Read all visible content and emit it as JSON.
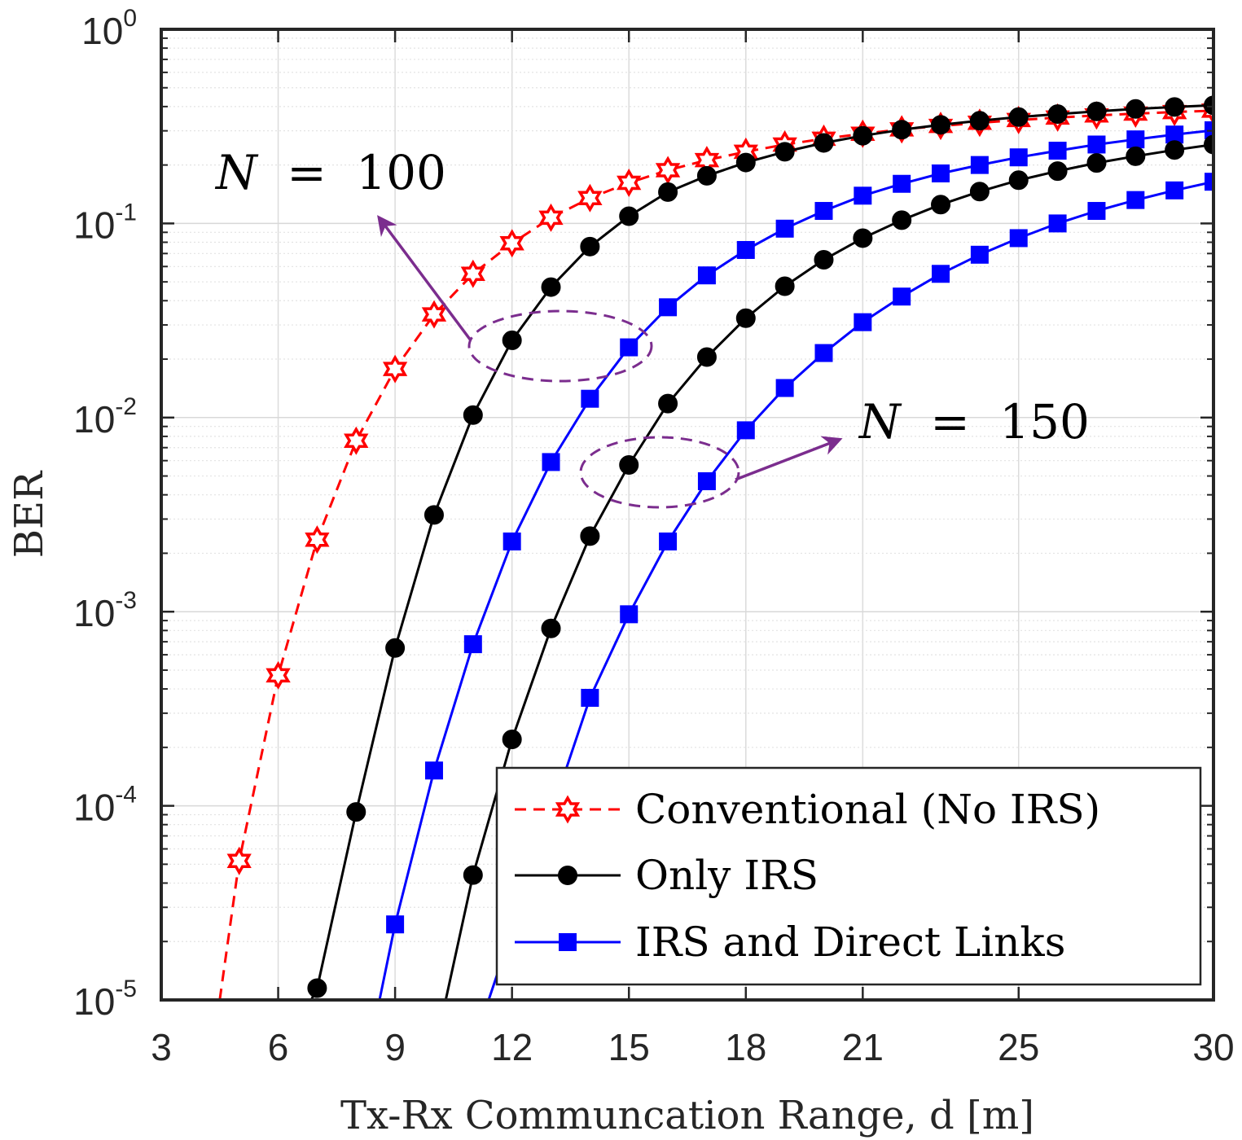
{
  "chart_data": {
    "type": "line",
    "title": "",
    "xlabel": "Tx-Rx Communcation Range, d [m]",
    "ylabel": "BER",
    "x_scale": "linear",
    "y_scale": "log",
    "xlim": [
      3,
      30
    ],
    "ylim": [
      1e-05,
      1
    ],
    "x_ticks": [
      3,
      6,
      9,
      12,
      15,
      18,
      21,
      25,
      30
    ],
    "y_tick_exponents": [
      0,
      -1,
      -2,
      -3,
      -4,
      -5
    ],
    "y_tick_base": "10",
    "grid": true,
    "colors": {
      "conventional": "#ff0000",
      "only_irs": "#000000",
      "irs_direct": "#0000ff",
      "annotation": "#7b2d8e",
      "axis": "#262626"
    },
    "legend": {
      "location": "bottom-right",
      "entries": [
        "Conventional (No IRS)",
        "Only IRS",
        "IRS and Direct Links"
      ]
    },
    "annotations": [
      {
        "variable": "N",
        "operator": "=",
        "value": "100"
      },
      {
        "variable": "N",
        "operator": "=",
        "value": "150"
      }
    ],
    "series": [
      {
        "name": "Conventional (No IRS)",
        "style": "dashed",
        "marker": "hexagram",
        "color": "#ff0000",
        "x": [
          4.5,
          5,
          6,
          7,
          8,
          9,
          10,
          11,
          12,
          13,
          14,
          15,
          16,
          17,
          18,
          19,
          20,
          21,
          22,
          23,
          24,
          25,
          26,
          27,
          28,
          29,
          30
        ],
        "y": [
          1e-05,
          5.2e-05,
          0.00047,
          0.00235,
          0.0076,
          0.0178,
          0.034,
          0.055,
          0.079,
          0.107,
          0.135,
          0.162,
          0.188,
          0.212,
          0.234,
          0.255,
          0.273,
          0.29,
          0.305,
          0.318,
          0.33,
          0.341,
          0.351,
          0.36,
          0.368,
          0.375,
          0.381
        ],
        "marker_from": 1
      },
      {
        "name": "Only IRS (N = 100)",
        "style": "solid",
        "marker": "circle",
        "color": "#000000",
        "x": [
          7,
          8,
          9,
          10,
          11,
          12,
          13,
          14,
          15,
          16,
          17,
          18,
          19,
          20,
          21,
          22,
          23,
          24,
          25,
          26,
          27,
          28,
          29,
          30
        ],
        "y": [
          1.15e-05,
          9.3e-05,
          0.00065,
          0.00315,
          0.0103,
          0.025,
          0.047,
          0.076,
          0.109,
          0.145,
          0.176,
          0.206,
          0.234,
          0.26,
          0.283,
          0.304,
          0.322,
          0.338,
          0.353,
          0.366,
          0.378,
          0.389,
          0.398,
          0.406
        ],
        "lead_in": [
          6.85,
          1e-05
        ]
      },
      {
        "name": "IRS and Direct Links (N = 100)",
        "style": "solid",
        "marker": "square",
        "color": "#0000ff",
        "x": [
          9,
          10,
          11,
          12,
          13,
          14,
          15,
          16,
          17,
          18,
          19,
          20,
          21,
          22,
          23,
          24,
          25,
          26,
          27,
          28,
          29,
          30
        ],
        "y": [
          2.45e-05,
          0.000152,
          0.00068,
          0.0023,
          0.0059,
          0.0125,
          0.023,
          0.037,
          0.054,
          0.073,
          0.094,
          0.116,
          0.139,
          0.16,
          0.181,
          0.2,
          0.219,
          0.237,
          0.255,
          0.271,
          0.287,
          0.302
        ],
        "lead_in": [
          8.6,
          1e-05
        ]
      },
      {
        "name": "Only IRS (N = 150)",
        "style": "solid",
        "marker": "circle",
        "color": "#000000",
        "x": [
          11,
          12,
          13,
          14,
          15,
          16,
          17,
          18,
          19,
          20,
          21,
          22,
          23,
          24,
          25,
          26,
          27,
          28,
          29,
          30
        ],
        "y": [
          4.4e-05,
          0.00022,
          0.00082,
          0.00245,
          0.0057,
          0.0118,
          0.0205,
          0.0325,
          0.0475,
          0.065,
          0.084,
          0.104,
          0.125,
          0.146,
          0.167,
          0.186,
          0.205,
          0.222,
          0.239,
          0.255
        ],
        "lead_in": [
          10.3,
          1e-05
        ]
      },
      {
        "name": "IRS and Direct Links (N = 150)",
        "style": "solid",
        "marker": "square",
        "color": "#0000ff",
        "x": [
          14,
          15,
          16,
          17,
          18,
          19,
          20,
          21,
          22,
          23,
          24,
          25,
          26,
          27,
          28,
          29,
          30
        ],
        "y": [
          0.00036,
          0.00097,
          0.0023,
          0.0047,
          0.0086,
          0.0142,
          0.0215,
          0.031,
          0.042,
          0.055,
          0.069,
          0.084,
          0.1,
          0.116,
          0.132,
          0.148,
          0.164
        ],
        "lead_in": [
          11.4,
          1e-05
        ]
      }
    ]
  }
}
